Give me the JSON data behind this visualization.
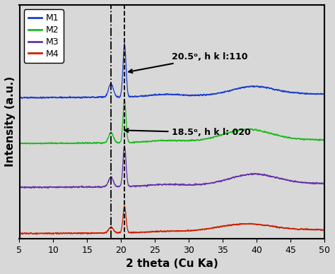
{
  "xlim": [
    5,
    50
  ],
  "xlabel": "2 theta (Cu Ka)",
  "ylabel": "Intensity (a.u.)",
  "xticks": [
    5,
    10,
    15,
    20,
    25,
    30,
    35,
    40,
    45,
    50
  ],
  "dashed_line1": 18.5,
  "dashed_line2": 20.5,
  "annotation1_text": "20.5ᵒ, h k l:110",
  "annotation2_text": "18.5ᵒ, h k l: 020",
  "colors": {
    "M1": "#1E3ECC",
    "M2": "#22BB22",
    "M3": "#6633AA",
    "M4": "#CC2200"
  },
  "offsets": {
    "M1": 2.8,
    "M2": 1.85,
    "M3": 0.95,
    "M4": 0.0
  },
  "background": "#d8d8d8",
  "peak1": 20.5,
  "peak2": 18.5
}
